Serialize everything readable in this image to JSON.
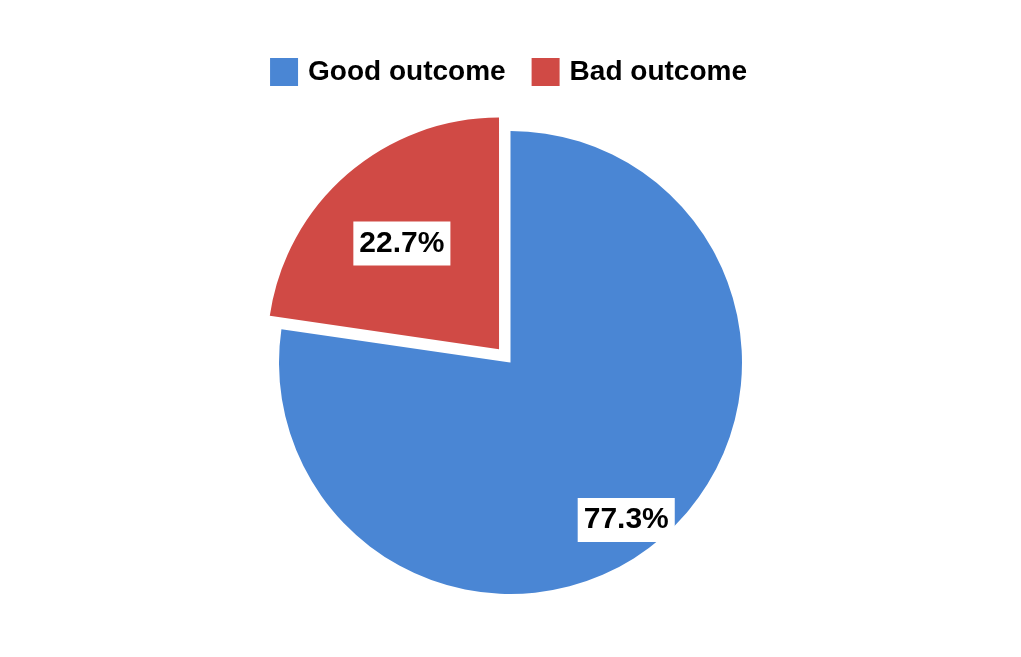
{
  "chart_data": {
    "type": "pie",
    "categories": [
      "Good outcome",
      "Bad outcome"
    ],
    "values": [
      77.3,
      22.7
    ],
    "colors": [
      "#4a86d4",
      "#d04a45"
    ],
    "value_labels": [
      "77.3%",
      "22.7%"
    ],
    "legend": "top"
  }
}
